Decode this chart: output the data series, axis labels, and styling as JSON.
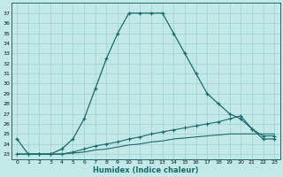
{
  "xlabel": "Humidex (Indice chaleur)",
  "background_color": "#c2e8e8",
  "grid_color": "#a0cfcf",
  "line_color": "#1a6b6b",
  "x_hours": [
    0,
    1,
    2,
    3,
    4,
    5,
    6,
    7,
    8,
    9,
    10,
    11,
    12,
    13,
    14,
    15,
    16,
    17,
    18,
    19,
    20,
    21,
    22,
    23
  ],
  "humidex_values": [
    24.5,
    23.0,
    23.0,
    23.0,
    23.5,
    24.5,
    26.5,
    29.5,
    32.5,
    35.0,
    37.0,
    37.0,
    37.0,
    37.0,
    35.0,
    33.0,
    31.0,
    29.0,
    28.0,
    27.0,
    26.5,
    25.5,
    24.5,
    24.5
  ],
  "line2_values": [
    23.0,
    23.0,
    23.0,
    23.0,
    23.0,
    23.2,
    23.5,
    23.8,
    24.0,
    24.2,
    24.5,
    24.7,
    25.0,
    25.2,
    25.4,
    25.6,
    25.8,
    26.0,
    26.2,
    26.5,
    26.8,
    25.5,
    24.8,
    24.8
  ],
  "line3_values": [
    23.0,
    23.0,
    23.0,
    23.0,
    23.0,
    23.1,
    23.2,
    23.4,
    23.5,
    23.7,
    23.9,
    24.0,
    24.2,
    24.3,
    24.5,
    24.6,
    24.7,
    24.8,
    24.9,
    25.0,
    25.0,
    25.0,
    25.0,
    25.0
  ],
  "ylim": [
    22.5,
    38.0
  ],
  "yticks": [
    23,
    24,
    25,
    26,
    27,
    28,
    29,
    30,
    31,
    32,
    33,
    34,
    35,
    36,
    37
  ],
  "xlim": [
    -0.5,
    23.5
  ],
  "xticks": [
    0,
    1,
    2,
    3,
    4,
    5,
    6,
    7,
    8,
    9,
    10,
    11,
    12,
    13,
    14,
    15,
    16,
    17,
    18,
    19,
    20,
    21,
    22,
    23
  ]
}
